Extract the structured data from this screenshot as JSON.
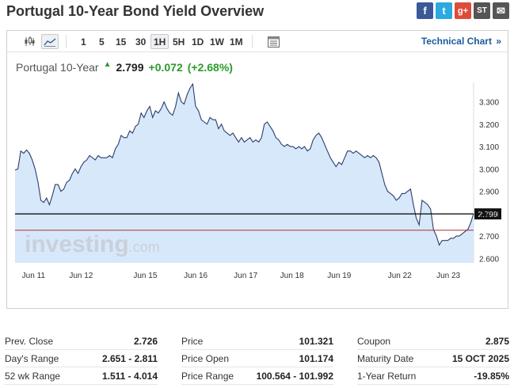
{
  "title": "Portugal 10-Year Bond Yield Overview",
  "share": {
    "facebook": "f",
    "twitter": "t",
    "google": "g+",
    "stocktwits": "ST",
    "email": "✉"
  },
  "toolbar": {
    "ranges": [
      "1",
      "5",
      "15",
      "30",
      "1H",
      "5H",
      "1D",
      "1W",
      "1M"
    ],
    "active_range": "1H",
    "technical_label": "Technical Chart",
    "technical_arrow": "»"
  },
  "quote": {
    "name": "Portugal 10-Year",
    "arrow": "▲",
    "price": "2.799",
    "change": "+0.072",
    "pct": "(+2.68%)"
  },
  "watermark": {
    "brand": "investing",
    "suffix": ".com"
  },
  "colors": {
    "line": "#2b3e6b",
    "fill": "#d7e8fb",
    "current": "#000000",
    "prev_close": "#b03030",
    "up": "#2a9b2a"
  },
  "chart_data": {
    "type": "area",
    "x_ticks": [
      "Jun 11",
      "Jun 12",
      "Jun 15",
      "Jun 16",
      "Jun 17",
      "Jun 18",
      "Jun 19",
      "Jun 22",
      "Jun 23"
    ],
    "y_ticks": [
      "3.300",
      "3.200",
      "3.100",
      "3.000",
      "2.900",
      "2.800",
      "2.700",
      "2.600"
    ],
    "ylim": [
      2.58,
      3.38
    ],
    "current_value": 2.799,
    "current_label": "2.799",
    "prev_close": 2.726,
    "values": [
      2.995,
      3.0,
      3.08,
      3.07,
      3.085,
      3.07,
      3.04,
      3.0,
      2.94,
      2.86,
      2.85,
      2.87,
      2.84,
      2.88,
      2.93,
      2.93,
      2.9,
      2.91,
      2.94,
      2.95,
      2.98,
      3.0,
      2.98,
      3.01,
      3.03,
      3.04,
      3.06,
      3.05,
      3.04,
      3.06,
      3.05,
      3.05,
      3.05,
      3.06,
      3.05,
      3.09,
      3.11,
      3.15,
      3.14,
      3.14,
      3.17,
      3.16,
      3.19,
      3.2,
      3.25,
      3.23,
      3.26,
      3.28,
      3.23,
      3.26,
      3.25,
      3.27,
      3.3,
      3.27,
      3.25,
      3.24,
      3.28,
      3.34,
      3.3,
      3.29,
      3.33,
      3.36,
      3.38,
      3.28,
      3.26,
      3.22,
      3.21,
      3.2,
      3.23,
      3.22,
      3.22,
      3.18,
      3.2,
      3.17,
      3.16,
      3.15,
      3.16,
      3.14,
      3.12,
      3.14,
      3.12,
      3.13,
      3.14,
      3.12,
      3.13,
      3.12,
      3.14,
      3.2,
      3.21,
      3.19,
      3.17,
      3.14,
      3.13,
      3.11,
      3.1,
      3.11,
      3.1,
      3.1,
      3.09,
      3.1,
      3.09,
      3.1,
      3.08,
      3.09,
      3.13,
      3.15,
      3.16,
      3.14,
      3.11,
      3.08,
      3.05,
      3.03,
      3.01,
      3.03,
      3.02,
      3.05,
      3.08,
      3.08,
      3.07,
      3.08,
      3.07,
      3.06,
      3.05,
      3.06,
      3.05,
      3.06,
      3.05,
      3.03,
      2.98,
      2.93,
      2.9,
      2.89,
      2.88,
      2.86,
      2.87,
      2.89,
      2.89,
      2.9,
      2.91,
      2.84,
      2.78,
      2.75,
      2.86,
      2.85,
      2.84,
      2.82,
      2.73,
      2.7,
      2.66,
      2.68,
      2.68,
      2.68,
      2.69,
      2.69,
      2.7,
      2.7,
      2.71,
      2.72,
      2.73,
      2.76,
      2.8
    ]
  },
  "stats": [
    [
      {
        "label": "Prev. Close",
        "value": "2.726"
      },
      {
        "label": "Day's Range",
        "value": "2.651 - 2.811"
      },
      {
        "label": "52 wk Range",
        "value": "1.511 - 4.014"
      }
    ],
    [
      {
        "label": "Price",
        "value": "101.321"
      },
      {
        "label": "Price Open",
        "value": "101.174"
      },
      {
        "label": "Price Range",
        "value": "100.564 - 101.992"
      }
    ],
    [
      {
        "label": "Coupon",
        "value": "2.875"
      },
      {
        "label": "Maturity Date",
        "value": "15 OCT 2025"
      },
      {
        "label": "1-Year Return",
        "value": "-19.85%"
      }
    ]
  ]
}
